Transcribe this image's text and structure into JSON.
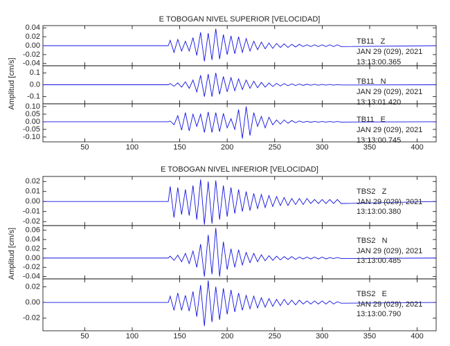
{
  "chart_data": [
    {
      "type": "line",
      "title": "E TOBOGAN NIVEL SUPERIOR [VELOCIDAD]",
      "y_label": "Amplitud [cm/s]",
      "xlim": [
        6,
        420
      ],
      "xticks": [
        50,
        100,
        150,
        200,
        250,
        300,
        350,
        400
      ],
      "x": [
        6,
        138,
        140,
        144,
        148,
        152,
        156,
        160,
        164,
        168,
        172,
        176,
        180,
        184,
        188,
        192,
        196,
        200,
        204,
        208,
        212,
        216,
        220,
        224,
        228,
        232,
        236,
        240,
        244,
        248,
        252,
        256,
        260,
        264,
        268,
        272,
        276,
        280,
        284,
        288,
        292,
        296,
        300,
        304,
        308,
        312,
        316,
        320,
        420
      ],
      "panels": [
        {
          "station": "TB11   Z",
          "date": "JAN 29 (029), 2021",
          "time": "13:13:00.365",
          "color": "#1010e0",
          "ylim": [
            -0.045,
            0.045
          ],
          "yticks": [
            -0.04,
            -0.02,
            {
              "value": 0,
              "label": "0.00"
            },
            0.02,
            0.04
          ],
          "values": [
            0,
            0,
            0.012,
            -0.015,
            0.014,
            -0.012,
            0.01,
            -0.012,
            0.018,
            -0.022,
            0.03,
            -0.035,
            0.028,
            -0.032,
            0.038,
            -0.03,
            0.025,
            -0.02,
            0.022,
            -0.018,
            0.02,
            -0.015,
            0.016,
            -0.012,
            0.01,
            -0.009,
            0.008,
            -0.007,
            0.006,
            -0.006,
            0.005,
            -0.004,
            0.004,
            -0.004,
            0.003,
            -0.003,
            0.003,
            -0.002,
            0.002,
            -0.002,
            0.002,
            -0.002,
            0.002,
            -0.002,
            0.002,
            -0.002,
            0.002,
            -0.002,
            0
          ]
        },
        {
          "station": "TB11   N",
          "date": "JAN 29 (029), 2021",
          "time": "13:13:01.420",
          "color": "#1010e0",
          "ylim": [
            -0.16,
            0.16
          ],
          "yticks": [
            -0.1,
            {
              "value": 0,
              "label": "0.0"
            },
            0.1
          ],
          "values": [
            0,
            0,
            0.01,
            -0.012,
            0.015,
            -0.02,
            0.025,
            -0.03,
            0.04,
            -0.06,
            0.08,
            -0.1,
            0.09,
            -0.1,
            0.1,
            -0.08,
            0.07,
            -0.06,
            0.06,
            -0.05,
            0.05,
            -0.04,
            0.04,
            -0.03,
            0.03,
            -0.025,
            0.02,
            -0.02,
            0.015,
            -0.015,
            0.012,
            -0.01,
            0.01,
            -0.008,
            0.008,
            -0.006,
            0.006,
            -0.005,
            0.005,
            -0.004,
            0.004,
            -0.004,
            0.003,
            -0.003,
            0.003,
            -0.003,
            0.002,
            -0.002,
            0
          ]
        },
        {
          "station": "TB11   E",
          "date": "JAN 29 (029), 2021",
          "time": "13:13:00.745",
          "color": "#1010e0",
          "ylim": [
            -0.132,
            0.118
          ],
          "yticks": [
            {
              "value": -0.1,
              "label": "-0.10"
            },
            -0.05,
            {
              "value": 0,
              "label": "0.00"
            },
            0.05,
            {
              "value": 0.1,
              "label": "0.10"
            }
          ],
          "values": [
            0,
            0,
            0.005,
            -0.02,
            0.04,
            -0.055,
            0.06,
            -0.06,
            0.05,
            -0.03,
            0.05,
            -0.07,
            0.065,
            -0.07,
            0.06,
            -0.065,
            0.055,
            -0.04,
            0.02,
            -0.05,
            0.08,
            -0.11,
            0.1,
            -0.09,
            0.06,
            -0.03,
            0.035,
            -0.04,
            0.03,
            -0.02,
            0.012,
            -0.015,
            0.012,
            -0.01,
            0.008,
            -0.006,
            0.005,
            -0.004,
            0.003,
            -0.003,
            0.002,
            -0.002,
            0.002,
            -0.002,
            0.002,
            -0.002,
            0.002,
            -0.002,
            0
          ]
        }
      ]
    },
    {
      "type": "line",
      "title": "E TOBOGAN NIVEL INFERIOR [VELOCIDAD]",
      "y_label": "Amplitud [cm/s]",
      "xlim": [
        6,
        420
      ],
      "xticks": [
        50,
        100,
        150,
        200,
        250,
        300,
        350,
        400
      ],
      "x": [
        6,
        138,
        140,
        144,
        148,
        152,
        156,
        160,
        164,
        168,
        172,
        176,
        180,
        184,
        188,
        192,
        196,
        200,
        204,
        208,
        212,
        216,
        220,
        224,
        228,
        232,
        236,
        240,
        244,
        248,
        252,
        256,
        260,
        264,
        268,
        272,
        276,
        280,
        284,
        288,
        292,
        296,
        300,
        304,
        308,
        312,
        316,
        320,
        420
      ],
      "panels": [
        {
          "station": "TBS2   Z",
          "date": "JAN 29 (029), 2021",
          "time": "13:13:00.380",
          "color": "#1010e0",
          "ylim": [
            -0.024,
            0.025
          ],
          "yticks": [
            -0.02,
            -0.01,
            {
              "value": 0,
              "label": "0.00"
            },
            0.01,
            0.02
          ],
          "values": [
            0,
            0,
            0.015,
            -0.016,
            0.014,
            -0.013,
            0.012,
            -0.014,
            0.016,
            -0.018,
            0.022,
            -0.023,
            0.02,
            -0.022,
            0.021,
            -0.018,
            0.016,
            -0.015,
            0.014,
            -0.012,
            0.012,
            -0.01,
            0.01,
            -0.009,
            0.008,
            -0.007,
            0.007,
            -0.006,
            0.006,
            -0.005,
            0.005,
            -0.004,
            0.004,
            -0.004,
            0.003,
            -0.003,
            0.003,
            -0.003,
            0.003,
            -0.002,
            0.002,
            -0.002,
            0.002,
            -0.002,
            0.002,
            -0.002,
            0.002,
            -0.002,
            0
          ]
        },
        {
          "station": "TBS2   N",
          "date": "JAN 29 (029), 2021",
          "time": "13:13:00.485",
          "color": "#1010e0",
          "ylim": [
            -0.045,
            0.07
          ],
          "yticks": [
            -0.04,
            -0.02,
            {
              "value": 0,
              "label": "0.00"
            },
            0.02,
            0.04,
            0.06
          ],
          "values": [
            0,
            0,
            0.004,
            -0.005,
            0.006,
            -0.008,
            0.01,
            -0.012,
            0.015,
            -0.02,
            0.03,
            -0.04,
            0.05,
            -0.035,
            0.065,
            -0.04,
            0.035,
            -0.025,
            0.02,
            -0.02,
            0.018,
            -0.015,
            0.012,
            -0.01,
            0.01,
            -0.008,
            0.007,
            -0.006,
            0.005,
            -0.005,
            0.004,
            -0.004,
            0.003,
            -0.003,
            0.003,
            -0.003,
            0.002,
            -0.002,
            0.002,
            -0.002,
            0.002,
            -0.002,
            0.002,
            -0.002,
            0.001,
            -0.001,
            0.001,
            -0.001,
            0
          ]
        },
        {
          "station": "TBS2   E",
          "date": "JAN 29 (029), 2021",
          "time": "13:13:00.790",
          "color": "#1010e0",
          "ylim": [
            -0.036,
            0.03
          ],
          "yticks": [
            -0.02,
            {
              "value": 0,
              "label": "0.00"
            },
            0.02
          ],
          "values": [
            0,
            0,
            0.008,
            -0.01,
            0.012,
            -0.01,
            0.009,
            -0.011,
            0.014,
            -0.018,
            0.022,
            -0.03,
            0.028,
            -0.025,
            0.02,
            -0.022,
            0.018,
            -0.015,
            0.016,
            -0.012,
            0.012,
            -0.01,
            0.009,
            -0.008,
            0.008,
            -0.007,
            0.006,
            -0.006,
            0.005,
            -0.005,
            0.004,
            -0.004,
            0.004,
            -0.003,
            0.003,
            -0.003,
            0.003,
            -0.002,
            0.002,
            -0.002,
            0.002,
            -0.002,
            0.002,
            -0.002,
            0.002,
            -0.002,
            0.001,
            -0.001,
            0
          ]
        }
      ]
    }
  ]
}
